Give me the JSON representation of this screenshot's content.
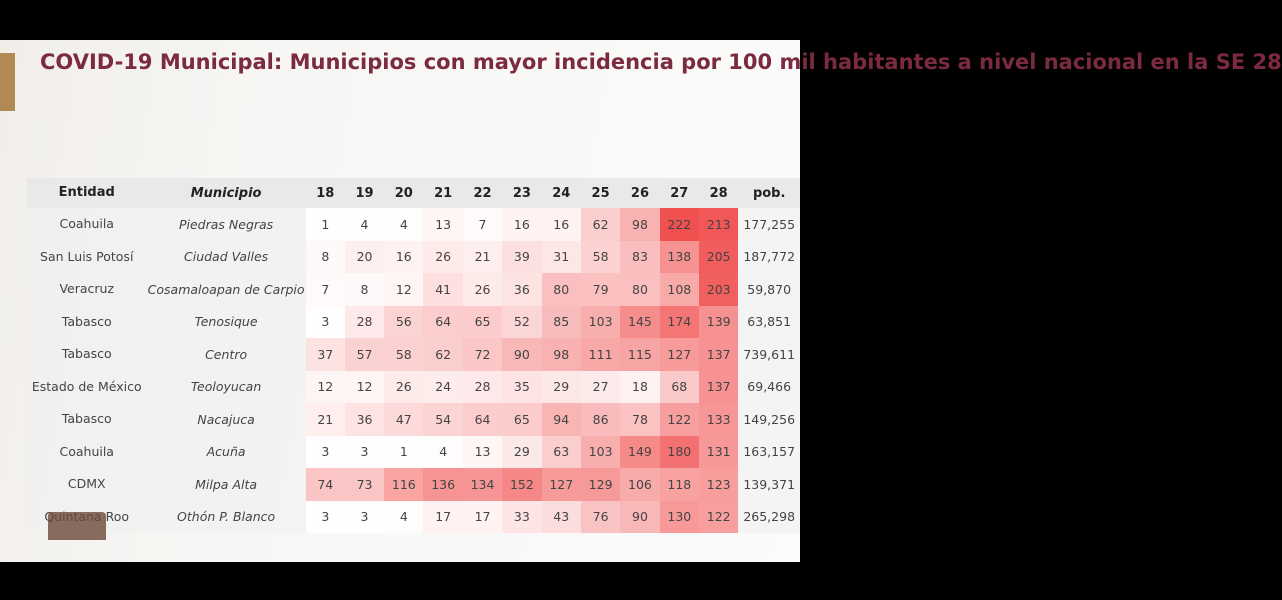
{
  "title": "COVID-19 Municipal: Municipios con mayor incidencia por 100 mil habitantes a nivel nacional en la SE 28",
  "colors": {
    "title": "#7b2a3f",
    "accent_bar": "#b08a52",
    "heat_low": "#ffffff",
    "heat_high": "#f0504f"
  },
  "chart_data": {
    "type": "heatmap",
    "columns": {
      "entidad": "Entidad",
      "municipio": "Municipio",
      "pob": "pob."
    },
    "weeks": [
      "18",
      "19",
      "20",
      "21",
      "22",
      "23",
      "24",
      "25",
      "26",
      "27",
      "28"
    ],
    "rows": [
      {
        "entidad": "Coahuila",
        "municipio": "Piedras Negras",
        "values": [
          1,
          4,
          4,
          13,
          7,
          16,
          16,
          62,
          98,
          222,
          213
        ],
        "pob": "177,255"
      },
      {
        "entidad": "San Luis Potosí",
        "municipio": "Ciudad Valles",
        "values": [
          8,
          20,
          16,
          26,
          21,
          39,
          31,
          58,
          83,
          138,
          205
        ],
        "pob": "187,772"
      },
      {
        "entidad": "Veracruz",
        "municipio": "Cosamaloapan de Carpio",
        "values": [
          7,
          8,
          12,
          41,
          26,
          36,
          80,
          79,
          80,
          108,
          203
        ],
        "pob": "59,870"
      },
      {
        "entidad": "Tabasco",
        "municipio": "Tenosique",
        "values": [
          3,
          28,
          56,
          64,
          65,
          52,
          85,
          103,
          145,
          174,
          139
        ],
        "pob": "63,851"
      },
      {
        "entidad": "Tabasco",
        "municipio": "Centro",
        "values": [
          37,
          57,
          58,
          62,
          72,
          90,
          98,
          111,
          115,
          127,
          137
        ],
        "pob": "739,611"
      },
      {
        "entidad": "Estado de México",
        "municipio": "Teoloyucan",
        "values": [
          12,
          12,
          26,
          24,
          28,
          35,
          29,
          27,
          18,
          68,
          137
        ],
        "pob": "69,466"
      },
      {
        "entidad": "Tabasco",
        "municipio": "Nacajuca",
        "values": [
          21,
          36,
          47,
          54,
          64,
          65,
          94,
          86,
          78,
          122,
          133
        ],
        "pob": "149,256"
      },
      {
        "entidad": "Coahuila",
        "municipio": "Acuña",
        "values": [
          3,
          3,
          1,
          4,
          13,
          29,
          63,
          103,
          149,
          180,
          131
        ],
        "pob": "163,157"
      },
      {
        "entidad": "CDMX",
        "municipio": "Milpa Alta",
        "values": [
          74,
          73,
          116,
          136,
          134,
          152,
          127,
          129,
          106,
          118,
          123
        ],
        "pob": "139,371"
      },
      {
        "entidad": "Quintana Roo",
        "municipio": "Othón P. Blanco",
        "values": [
          3,
          3,
          4,
          17,
          17,
          33,
          43,
          76,
          90,
          130,
          122
        ],
        "pob": "265,298"
      }
    ]
  }
}
